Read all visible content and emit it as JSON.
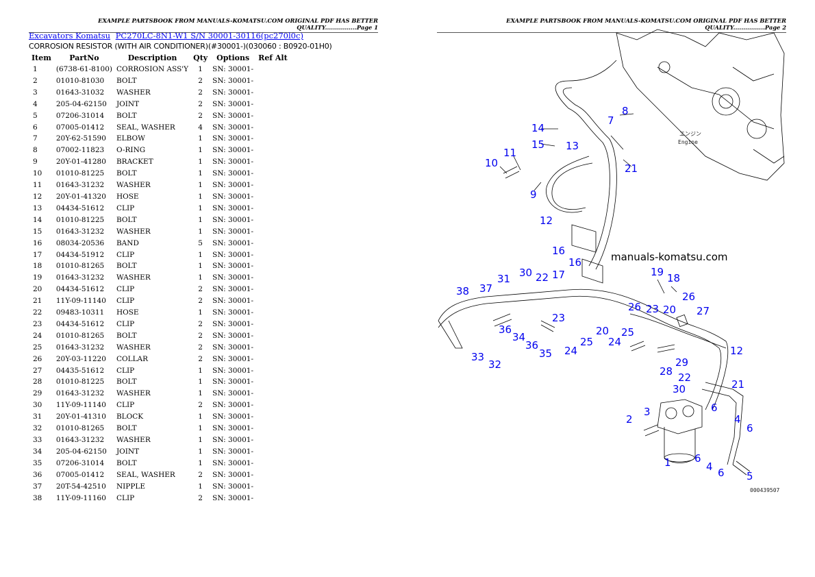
{
  "page1": {
    "header": "EXAMPLE PARTSBOOK FROM MANUALS-KOMATSU.COM ORIGINAL PDF HAS BETTER QUALITY................Page 1",
    "breadcrumb": [
      {
        "label": "Excavators Komatsu"
      },
      {
        "label": "PC270LC-8N1-W1 S/N  30001-30116(pc270l0c)"
      }
    ],
    "subtitle": "CORROSION RESISTOR (WITH AIR CONDITIONER)(#30001-)(030060 : B0920-01H0)",
    "table": {
      "columns": [
        "Item",
        "PartNo",
        "Description",
        "Qty",
        "Options",
        "Ref Alt"
      ],
      "rows": [
        [
          "1",
          "(6738-61-8100)",
          "CORROSION ASS'Y",
          "1",
          "SN: 30001-",
          ""
        ],
        [
          "2",
          "01010-81030",
          "BOLT",
          "2",
          "SN: 30001-",
          ""
        ],
        [
          "3",
          "01643-31032",
          "WASHER",
          "2",
          "SN: 30001-",
          ""
        ],
        [
          "4",
          "205-04-62150",
          "JOINT",
          "2",
          "SN: 30001-",
          ""
        ],
        [
          "5",
          "07206-31014",
          "BOLT",
          "2",
          "SN: 30001-",
          ""
        ],
        [
          "6",
          "07005-01412",
          "SEAL, WASHER",
          "4",
          "SN: 30001-",
          ""
        ],
        [
          "7",
          "20Y-62-51590",
          "ELBOW",
          "1",
          "SN: 30001-",
          ""
        ],
        [
          "8",
          "07002-11823",
          "O-RING",
          "1",
          "SN: 30001-",
          ""
        ],
        [
          "9",
          "20Y-01-41280",
          "BRACKET",
          "1",
          "SN: 30001-",
          ""
        ],
        [
          "10",
          "01010-81225",
          "BOLT",
          "1",
          "SN: 30001-",
          ""
        ],
        [
          "11",
          "01643-31232",
          "WASHER",
          "1",
          "SN: 30001-",
          ""
        ],
        [
          "12",
          "20Y-01-41320",
          "HOSE",
          "1",
          "SN: 30001-",
          ""
        ],
        [
          "13",
          "04434-51612",
          "CLIP",
          "1",
          "SN: 30001-",
          ""
        ],
        [
          "14",
          "01010-81225",
          "BOLT",
          "1",
          "SN: 30001-",
          ""
        ],
        [
          "15",
          "01643-31232",
          "WASHER",
          "1",
          "SN: 30001-",
          ""
        ],
        [
          "16",
          "08034-20536",
          "BAND",
          "5",
          "SN: 30001-",
          ""
        ],
        [
          "17",
          "04434-51912",
          "CLIP",
          "1",
          "SN: 30001-",
          ""
        ],
        [
          "18",
          "01010-81265",
          "BOLT",
          "1",
          "SN: 30001-",
          ""
        ],
        [
          "19",
          "01643-31232",
          "WASHER",
          "1",
          "SN: 30001-",
          ""
        ],
        [
          "20",
          "04434-51612",
          "CLIP",
          "2",
          "SN: 30001-",
          ""
        ],
        [
          "21",
          "11Y-09-11140",
          "CLIP",
          "2",
          "SN: 30001-",
          ""
        ],
        [
          "22",
          "09483-10311",
          "HOSE",
          "1",
          "SN: 30001-",
          ""
        ],
        [
          "23",
          "04434-51612",
          "CLIP",
          "2",
          "SN: 30001-",
          ""
        ],
        [
          "24",
          "01010-81265",
          "BOLT",
          "2",
          "SN: 30001-",
          ""
        ],
        [
          "25",
          "01643-31232",
          "WASHER",
          "2",
          "SN: 30001-",
          ""
        ],
        [
          "26",
          "20Y-03-11220",
          "COLLAR",
          "2",
          "SN: 30001-",
          ""
        ],
        [
          "27",
          "04435-51612",
          "CLIP",
          "1",
          "SN: 30001-",
          ""
        ],
        [
          "28",
          "01010-81225",
          "BOLT",
          "1",
          "SN: 30001-",
          ""
        ],
        [
          "29",
          "01643-31232",
          "WASHER",
          "1",
          "SN: 30001-",
          ""
        ],
        [
          "30",
          "11Y-09-11140",
          "CLIP",
          "2",
          "SN: 30001-",
          ""
        ],
        [
          "31",
          "20Y-01-41310",
          "BLOCK",
          "1",
          "SN: 30001-",
          ""
        ],
        [
          "32",
          "01010-81265",
          "BOLT",
          "1",
          "SN: 30001-",
          ""
        ],
        [
          "33",
          "01643-31232",
          "WASHER",
          "1",
          "SN: 30001-",
          ""
        ],
        [
          "34",
          "205-04-62150",
          "JOINT",
          "1",
          "SN: 30001-",
          ""
        ],
        [
          "35",
          "07206-31014",
          "BOLT",
          "1",
          "SN: 30001-",
          ""
        ],
        [
          "36",
          "07005-01412",
          "SEAL, WASHER",
          "2",
          "SN: 30001-",
          ""
        ],
        [
          "37",
          "20T-54-42510",
          "NIPPLE",
          "1",
          "SN: 30001-",
          ""
        ],
        [
          "38",
          "11Y-09-11160",
          "CLIP",
          "2",
          "SN: 30001-",
          ""
        ]
      ]
    }
  },
  "page2": {
    "header": "EXAMPLE PARTSBOOK FROM MANUALS-KOMATSU.COM ORIGINAL PDF HAS BETTER QUALITY................Page 2",
    "watermark": "manuals-komatsu.com",
    "engine_label_jp": "エンジン",
    "engine_label": "Engine",
    "figure_code": "000439507",
    "callouts": [
      "14",
      "15",
      "13",
      "8",
      "7",
      "21",
      "11",
      "10",
      "9",
      "12",
      "16",
      "16",
      "38",
      "37",
      "31",
      "30",
      "22",
      "17",
      "19",
      "18",
      "26",
      "26",
      "23",
      "20",
      "27",
      "23",
      "36",
      "34",
      "36",
      "35",
      "24",
      "25",
      "20",
      "24",
      "25",
      "33",
      "32",
      "29",
      "28",
      "22",
      "12",
      "21",
      "30",
      "3",
      "2",
      "6",
      "4",
      "6",
      "1",
      "6",
      "4",
      "6",
      "5"
    ],
    "callout_color": "#0000ee"
  }
}
